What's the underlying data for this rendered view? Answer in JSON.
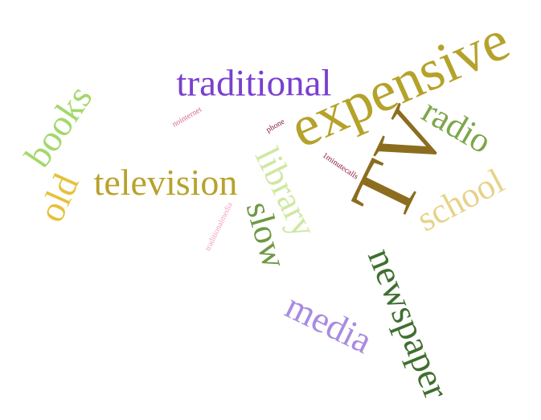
{
  "cloud": {
    "words": [
      {
        "id": "expensive",
        "text": "expensive",
        "color": "#b5a22a"
      },
      {
        "id": "tv",
        "text": "TV",
        "color": "#8c6d1f"
      },
      {
        "id": "traditional",
        "text": "traditional",
        "color": "#7a3fcf"
      },
      {
        "id": "television",
        "text": "television",
        "color": "#b8a22c"
      },
      {
        "id": "books",
        "text": "books",
        "color": "#a3d86b"
      },
      {
        "id": "old",
        "text": "old",
        "color": "#e6c13a"
      },
      {
        "id": "radio",
        "text": "radio",
        "color": "#7da64a"
      },
      {
        "id": "school",
        "text": "school",
        "color": "#e6d38a"
      },
      {
        "id": "library",
        "text": "library",
        "color": "#cfe8a3"
      },
      {
        "id": "slow",
        "text": "slow",
        "color": "#6e9a44"
      },
      {
        "id": "newspaper",
        "text": "newspaper",
        "color": "#3f6f2f"
      },
      {
        "id": "media",
        "text": "media",
        "color": "#a98be0"
      },
      {
        "id": "nointernet",
        "text": "nointernet",
        "color": "#d76a8a"
      },
      {
        "id": "phone",
        "text": "phone",
        "color": "#8b1a3a"
      },
      {
        "id": "1minutecalls",
        "text": "1minutecalls",
        "color": "#8b1a3a"
      },
      {
        "id": "traditionalmedia",
        "text": "traditionalmedia",
        "color": "#f0a2b6"
      }
    ]
  }
}
